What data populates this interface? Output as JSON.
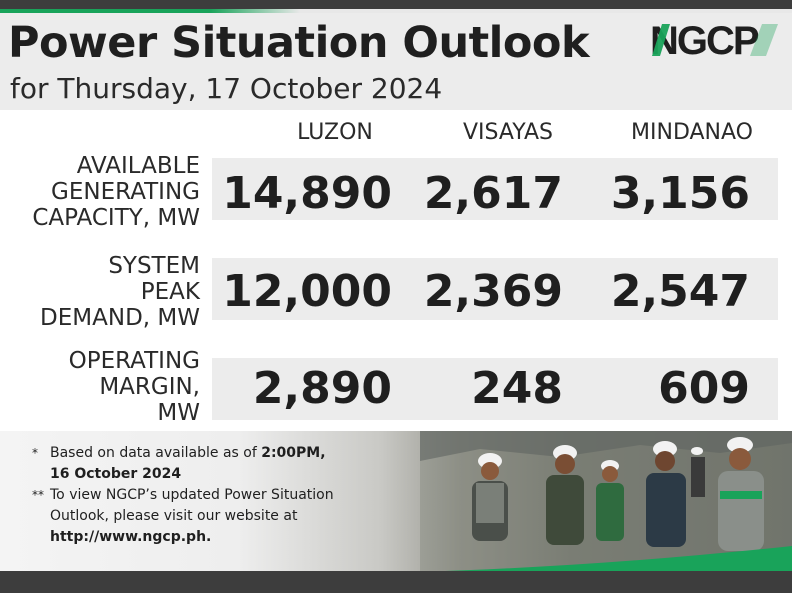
{
  "header": {
    "title": "Power Situation Outlook",
    "subtitle": "for Thursday, 17 October 2024",
    "logo_text": "NGCP"
  },
  "columns": [
    "LUZON",
    "VISAYAS",
    "MINDANAO"
  ],
  "rows": [
    {
      "label_lines": [
        "AVAILABLE",
        "GENERATING",
        "CAPACITY, MW"
      ],
      "values": [
        "14,890",
        "2,617",
        "3,156"
      ]
    },
    {
      "label_lines": [
        "SYSTEM",
        "PEAK",
        "DEMAND, MW"
      ],
      "values": [
        "12,000",
        "2,369",
        "2,547"
      ]
    },
    {
      "label_lines": [
        "OPERATING",
        "MARGIN,",
        "MW"
      ],
      "values": [
        "2,890",
        "248",
        "609"
      ]
    }
  ],
  "notes": {
    "note1_mark": "*",
    "note1_text": "Based on data available as of ",
    "note1_bold_time": "2:00PM,",
    "note1_bold_date": "16 October 2024",
    "note2_mark": "**",
    "note2_line1": "To view NGCP’s updated Power Situation",
    "note2_line2": "Outlook, please visit our website at",
    "note2_url": "http://www.ngcp.ph."
  },
  "colors": {
    "brand_green": "#19a35a",
    "dark_bar": "#3d3d3d",
    "band_gray": "#ececec"
  }
}
